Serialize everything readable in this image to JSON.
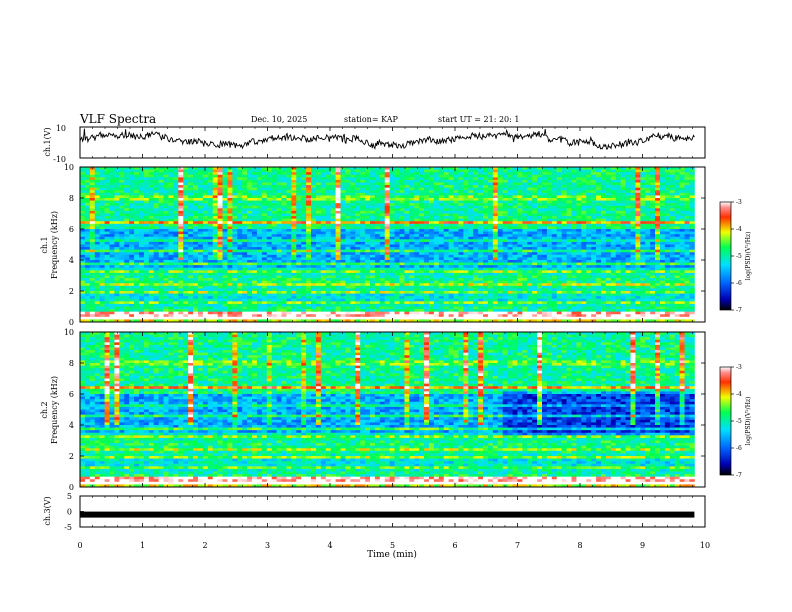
{
  "header": {
    "title": "VLF Spectra",
    "date": "Dec. 10, 2025",
    "station": "station= KAP",
    "start": "start  UT  =   21: 20: 1"
  },
  "chart_data": [
    {
      "type": "line",
      "title": "ch.1 waveform",
      "ylabel": "ch.1(V)",
      "ylim": [
        -10,
        10
      ],
      "yticks": [
        "10",
        "-10"
      ],
      "x_range_min": [
        0,
        9.83
      ],
      "y_mean_approx": 1.5
    },
    {
      "type": "heatmap",
      "title": "ch.1 spectrogram",
      "ylabel_1": "ch.1",
      "ylabel_2": "Frequency (kHz)",
      "ylim": [
        0,
        10
      ],
      "yticks": [
        "0",
        "2",
        "4",
        "6",
        "8",
        "10"
      ],
      "x_range_min": [
        0,
        9.83
      ],
      "colorbar": {
        "label": "log(PSD)(V²/Hz)",
        "range": [
          -7,
          -3
        ],
        "ticks": [
          "-3",
          "-4",
          "-5",
          "-6",
          "-7"
        ]
      }
    },
    {
      "type": "heatmap",
      "title": "ch.2 spectrogram",
      "ylabel_1": "ch.2",
      "ylabel_2": "Frequency (kHz)",
      "ylim": [
        0,
        10
      ],
      "yticks": [
        "0",
        "2",
        "4",
        "6",
        "8",
        "10"
      ],
      "x_range_min": [
        0,
        9.83
      ],
      "colorbar": {
        "label": "log(PSD)(V²/Hz)",
        "range": [
          -7,
          -3
        ],
        "ticks": [
          "-3",
          "-4",
          "-5",
          "-6",
          "-7"
        ]
      }
    },
    {
      "type": "line",
      "title": "ch.3 waveform",
      "ylabel": "ch.3(V)",
      "ylim": [
        -5,
        5
      ],
      "yticks": [
        "5",
        "0",
        "-5"
      ],
      "constant_value": -1
    }
  ],
  "x_axis": {
    "label": "Time  (min)",
    "ticks": [
      "0",
      "1",
      "2",
      "3",
      "4",
      "5",
      "6",
      "7",
      "8",
      "9",
      "10"
    ],
    "range": [
      0,
      10
    ]
  }
}
